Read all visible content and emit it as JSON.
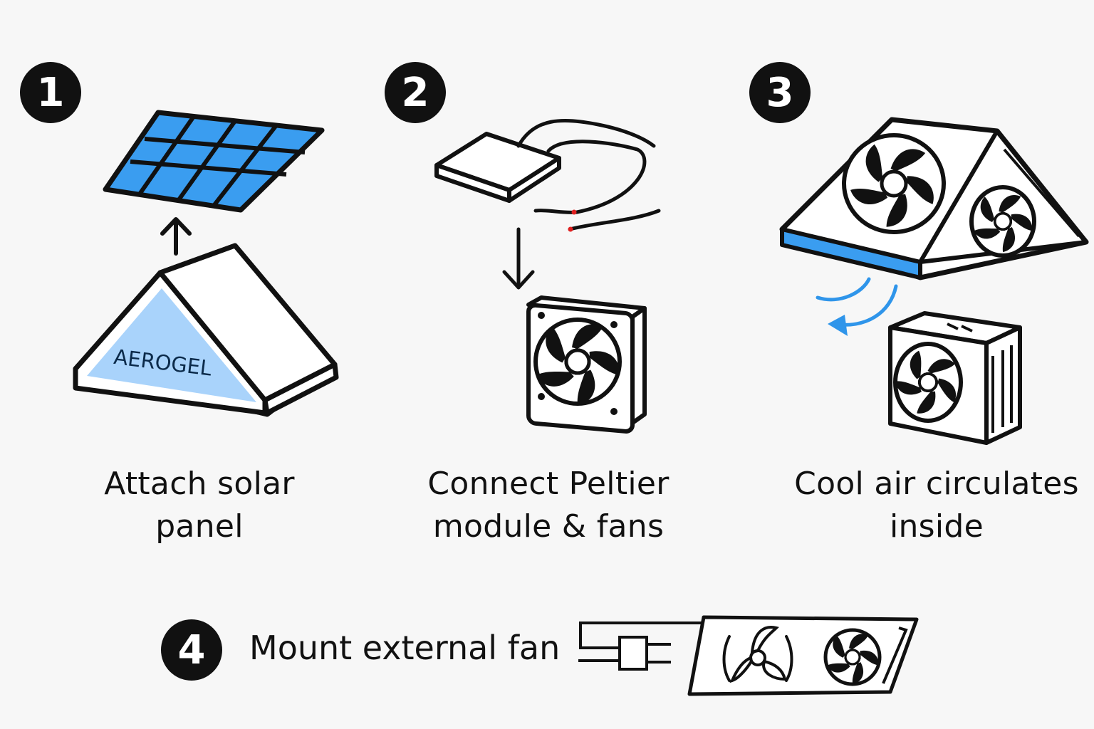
{
  "steps": [
    {
      "number": "1",
      "caption": [
        "Attach solar",
        "panel"
      ]
    },
    {
      "number": "2",
      "caption": [
        "Connect Peltier",
        "module & fans"
      ]
    },
    {
      "number": "3",
      "caption": [
        "Cool air circulates",
        "inside"
      ]
    },
    {
      "number": "4",
      "caption": [
        "Mount external fan"
      ]
    }
  ],
  "labels": {
    "aerogel": "AEROGEL"
  },
  "colors": {
    "solar_blue": "#3a9df0",
    "aerogel_blue": "#a9d3fb",
    "air_flow_blue": "#2f95ea",
    "ink": "#111111"
  }
}
